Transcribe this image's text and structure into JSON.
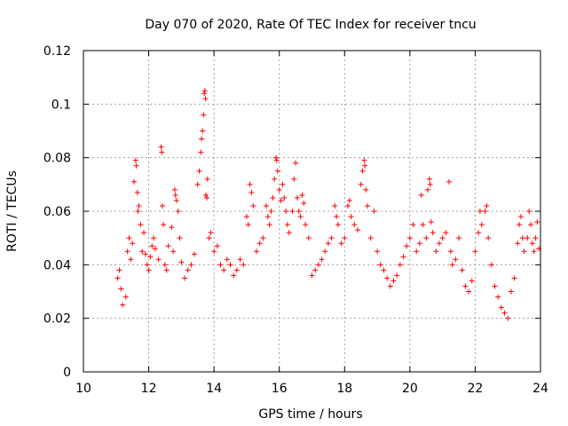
{
  "chart_data": {
    "type": "scatter",
    "title": "Day 070 of 2020, Rate Of TEC Index for receiver tncu",
    "xlabel": "GPS time / hours",
    "ylabel": "ROTI / TECUs",
    "xlim": [
      10,
      24
    ],
    "ylim": [
      0,
      0.12
    ],
    "x_ticks": [
      "10",
      "12",
      "14",
      "16",
      "18",
      "20",
      "22",
      "24"
    ],
    "y_ticks": [
      "0",
      "0.02",
      "0.04",
      "0.06",
      "0.08",
      "0.1",
      "0.12"
    ],
    "grid": true,
    "marker": "plus",
    "color": "#ff0000",
    "series": [
      {
        "points": [
          [
            11.05,
            0.035
          ],
          [
            11.1,
            0.038
          ],
          [
            11.15,
            0.031
          ],
          [
            11.2,
            0.025
          ],
          [
            11.3,
            0.028
          ],
          [
            11.35,
            0.045
          ],
          [
            11.4,
            0.05
          ],
          [
            11.45,
            0.042
          ],
          [
            11.5,
            0.048
          ],
          [
            11.55,
            0.071
          ],
          [
            11.6,
            0.079
          ],
          [
            11.62,
            0.077
          ],
          [
            11.65,
            0.067
          ],
          [
            11.67,
            0.06
          ],
          [
            11.7,
            0.062
          ],
          [
            11.75,
            0.055
          ],
          [
            11.8,
            0.045
          ],
          [
            11.85,
            0.052
          ],
          [
            11.9,
            0.044
          ],
          [
            11.95,
            0.04
          ],
          [
            12.0,
            0.038
          ],
          [
            12.05,
            0.043
          ],
          [
            12.1,
            0.047
          ],
          [
            12.15,
            0.05
          ],
          [
            12.2,
            0.046
          ],
          [
            12.3,
            0.042
          ],
          [
            12.38,
            0.084
          ],
          [
            12.4,
            0.082
          ],
          [
            12.42,
            0.062
          ],
          [
            12.45,
            0.055
          ],
          [
            12.5,
            0.04
          ],
          [
            12.55,
            0.038
          ],
          [
            12.6,
            0.047
          ],
          [
            12.7,
            0.054
          ],
          [
            12.75,
            0.045
          ],
          [
            12.8,
            0.068
          ],
          [
            12.82,
            0.066
          ],
          [
            12.85,
            0.064
          ],
          [
            12.9,
            0.06
          ],
          [
            12.95,
            0.05
          ],
          [
            13.0,
            0.041
          ],
          [
            13.1,
            0.035
          ],
          [
            13.2,
            0.038
          ],
          [
            13.3,
            0.04
          ],
          [
            13.4,
            0.044
          ],
          [
            13.5,
            0.07
          ],
          [
            13.55,
            0.075
          ],
          [
            13.6,
            0.082
          ],
          [
            13.62,
            0.087
          ],
          [
            13.65,
            0.09
          ],
          [
            13.68,
            0.096
          ],
          [
            13.7,
            0.104
          ],
          [
            13.72,
            0.105
          ],
          [
            13.74,
            0.102
          ],
          [
            13.75,
            0.066
          ],
          [
            13.78,
            0.065
          ],
          [
            13.8,
            0.072
          ],
          [
            13.85,
            0.05
          ],
          [
            13.9,
            0.052
          ],
          [
            14.0,
            0.045
          ],
          [
            14.1,
            0.047
          ],
          [
            14.2,
            0.04
          ],
          [
            14.3,
            0.038
          ],
          [
            14.4,
            0.042
          ],
          [
            14.5,
            0.04
          ],
          [
            14.6,
            0.036
          ],
          [
            14.7,
            0.038
          ],
          [
            14.8,
            0.042
          ],
          [
            14.9,
            0.04
          ],
          [
            15.0,
            0.058
          ],
          [
            15.05,
            0.055
          ],
          [
            15.1,
            0.07
          ],
          [
            15.15,
            0.067
          ],
          [
            15.2,
            0.062
          ],
          [
            15.3,
            0.045
          ],
          [
            15.4,
            0.048
          ],
          [
            15.5,
            0.05
          ],
          [
            15.6,
            0.062
          ],
          [
            15.65,
            0.058
          ],
          [
            15.7,
            0.055
          ],
          [
            15.75,
            0.06
          ],
          [
            15.8,
            0.065
          ],
          [
            15.85,
            0.072
          ],
          [
            15.9,
            0.08
          ],
          [
            15.92,
            0.079
          ],
          [
            15.95,
            0.075
          ],
          [
            16.0,
            0.068
          ],
          [
            16.05,
            0.064
          ],
          [
            16.1,
            0.07
          ],
          [
            16.15,
            0.065
          ],
          [
            16.2,
            0.06
          ],
          [
            16.25,
            0.055
          ],
          [
            16.3,
            0.052
          ],
          [
            16.4,
            0.06
          ],
          [
            16.45,
            0.072
          ],
          [
            16.5,
            0.078
          ],
          [
            16.55,
            0.065
          ],
          [
            16.6,
            0.06
          ],
          [
            16.65,
            0.058
          ],
          [
            16.7,
            0.066
          ],
          [
            16.75,
            0.063
          ],
          [
            16.8,
            0.055
          ],
          [
            16.9,
            0.05
          ],
          [
            17.0,
            0.036
          ],
          [
            17.1,
            0.038
          ],
          [
            17.2,
            0.04
          ],
          [
            17.3,
            0.042
          ],
          [
            17.4,
            0.045
          ],
          [
            17.5,
            0.048
          ],
          [
            17.6,
            0.05
          ],
          [
            17.7,
            0.062
          ],
          [
            17.75,
            0.058
          ],
          [
            17.8,
            0.055
          ],
          [
            17.9,
            0.048
          ],
          [
            18.0,
            0.05
          ],
          [
            18.1,
            0.062
          ],
          [
            18.15,
            0.064
          ],
          [
            18.2,
            0.058
          ],
          [
            18.3,
            0.055
          ],
          [
            18.4,
            0.053
          ],
          [
            18.5,
            0.07
          ],
          [
            18.55,
            0.075
          ],
          [
            18.6,
            0.079
          ],
          [
            18.62,
            0.077
          ],
          [
            18.65,
            0.068
          ],
          [
            18.7,
            0.062
          ],
          [
            18.8,
            0.05
          ],
          [
            18.9,
            0.06
          ],
          [
            19.0,
            0.045
          ],
          [
            19.1,
            0.04
          ],
          [
            19.2,
            0.038
          ],
          [
            19.3,
            0.035
          ],
          [
            19.4,
            0.032
          ],
          [
            19.5,
            0.034
          ],
          [
            19.6,
            0.036
          ],
          [
            19.7,
            0.04
          ],
          [
            19.8,
            0.043
          ],
          [
            19.9,
            0.047
          ],
          [
            20.0,
            0.05
          ],
          [
            20.1,
            0.055
          ],
          [
            20.2,
            0.045
          ],
          [
            20.3,
            0.048
          ],
          [
            20.35,
            0.066
          ],
          [
            20.4,
            0.055
          ],
          [
            20.5,
            0.05
          ],
          [
            20.55,
            0.068
          ],
          [
            20.6,
            0.072
          ],
          [
            20.62,
            0.07
          ],
          [
            20.65,
            0.056
          ],
          [
            20.7,
            0.052
          ],
          [
            20.8,
            0.045
          ],
          [
            20.9,
            0.048
          ],
          [
            21.0,
            0.05
          ],
          [
            21.1,
            0.052
          ],
          [
            21.2,
            0.071
          ],
          [
            21.25,
            0.045
          ],
          [
            21.3,
            0.04
          ],
          [
            21.4,
            0.042
          ],
          [
            21.5,
            0.05
          ],
          [
            21.6,
            0.038
          ],
          [
            21.7,
            0.032
          ],
          [
            21.8,
            0.03
          ],
          [
            21.9,
            0.034
          ],
          [
            22.0,
            0.045
          ],
          [
            22.1,
            0.052
          ],
          [
            22.15,
            0.06
          ],
          [
            22.2,
            0.055
          ],
          [
            22.3,
            0.06
          ],
          [
            22.35,
            0.062
          ],
          [
            22.4,
            0.05
          ],
          [
            22.5,
            0.04
          ],
          [
            22.6,
            0.032
          ],
          [
            22.7,
            0.028
          ],
          [
            22.8,
            0.024
          ],
          [
            22.9,
            0.022
          ],
          [
            23.0,
            0.02
          ],
          [
            23.1,
            0.03
          ],
          [
            23.2,
            0.035
          ],
          [
            23.3,
            0.048
          ],
          [
            23.35,
            0.055
          ],
          [
            23.4,
            0.058
          ],
          [
            23.45,
            0.05
          ],
          [
            23.5,
            0.045
          ],
          [
            23.6,
            0.05
          ],
          [
            23.65,
            0.06
          ],
          [
            23.7,
            0.055
          ],
          [
            23.75,
            0.048
          ],
          [
            23.8,
            0.045
          ],
          [
            23.85,
            0.05
          ],
          [
            23.9,
            0.056
          ],
          [
            23.95,
            0.046
          ]
        ]
      }
    ]
  }
}
